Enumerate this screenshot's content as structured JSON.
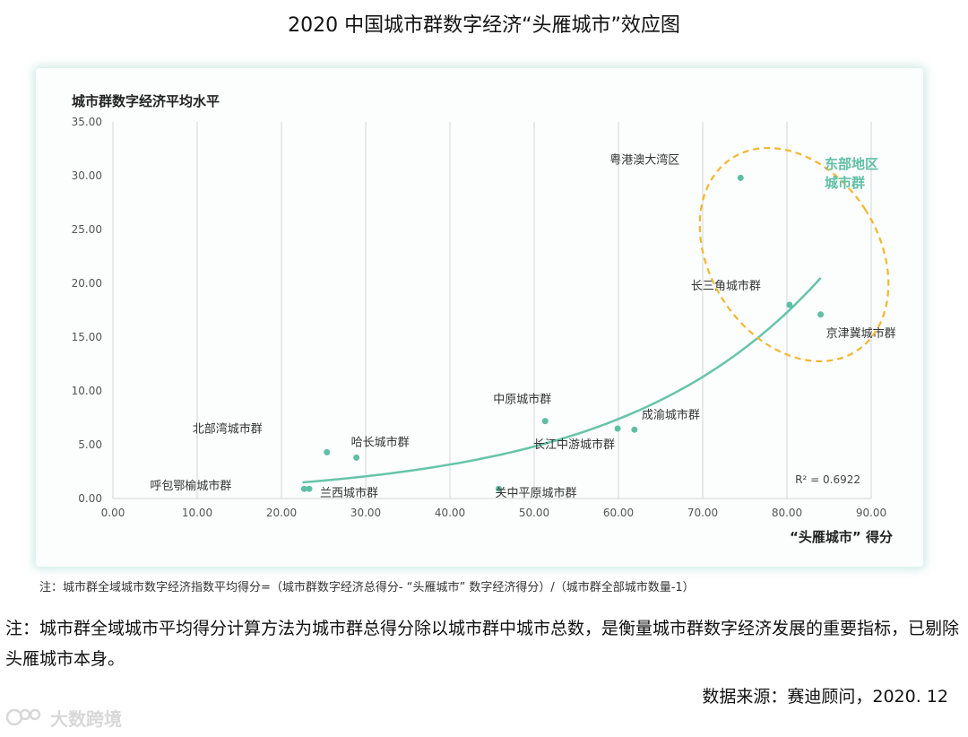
{
  "title": "2020 中国城市群数字经济“头雁城市”效应图",
  "note_small": "注：城市群全域城市数字经济指数平均得分=（城市群数字经济总得分- “头雁城市” 数字经济得分）/（城市群全部城市数量-1）",
  "note_big": "注：城市群全域城市平均得分计算方法为城市群总得分除以城市群中城市总数，是衡量城市群数字经济发展的重要指标，已剔除头雁城市本身。",
  "source": "数据来源：赛迪顾问，2020. 12",
  "watermark": "大数跨境",
  "colors": {
    "point": "#5fbfa5",
    "trend": "#66c4aa",
    "highlight_ellipse": "#f2b731",
    "highlight_text": "#5fbfa5",
    "grid": "#cfd6d6"
  },
  "chart_data": {
    "type": "scatter",
    "ylabel": "城市群数字经济平均水平",
    "xlabel": "“头雁城市” 得分",
    "xlim": [
      0,
      90
    ],
    "ylim": [
      0,
      35
    ],
    "x_ticks": [
      "0.00",
      "10.00",
      "20.00",
      "30.00",
      "40.00",
      "50.00",
      "60.00",
      "70.00",
      "80.00",
      "90.00"
    ],
    "y_ticks": [
      "0.00",
      "5.00",
      "10.00",
      "15.00",
      "20.00",
      "25.00",
      "30.00",
      "35.00"
    ],
    "grid": "vertical",
    "points": [
      {
        "label": "粤港澳大湾区",
        "x": 74.5,
        "y": 29.8
      },
      {
        "label": "长三角城市群",
        "x": 80.3,
        "y": 18.0
      },
      {
        "label": "京津冀城市群",
        "x": 84.0,
        "y": 17.1
      },
      {
        "label": "中原城市群",
        "x": 51.3,
        "y": 7.2
      },
      {
        "label": "成渝城市群",
        "x": 61.9,
        "y": 6.4
      },
      {
        "label": "长江中游城市群",
        "x": 59.9,
        "y": 6.5
      },
      {
        "label": "北部湾城市群",
        "x": 25.4,
        "y": 4.3
      },
      {
        "label": "哈长城市群",
        "x": 28.9,
        "y": 3.8
      },
      {
        "label": "呼包鄂榆城市群",
        "x": 22.7,
        "y": 0.9
      },
      {
        "label": "兰西城市群",
        "x": 23.3,
        "y": 0.9
      },
      {
        "label": "关中平原城市群",
        "x": 45.8,
        "y": 0.9
      }
    ],
    "trendline": {
      "type": "exponential",
      "x_range": [
        22.5,
        84.0
      ],
      "y_start": 1.5,
      "y_end": 20.5
    },
    "r_squared": "R² = 0.6922",
    "annotation": {
      "lines": [
        "东部地区",
        "城市群"
      ]
    }
  }
}
